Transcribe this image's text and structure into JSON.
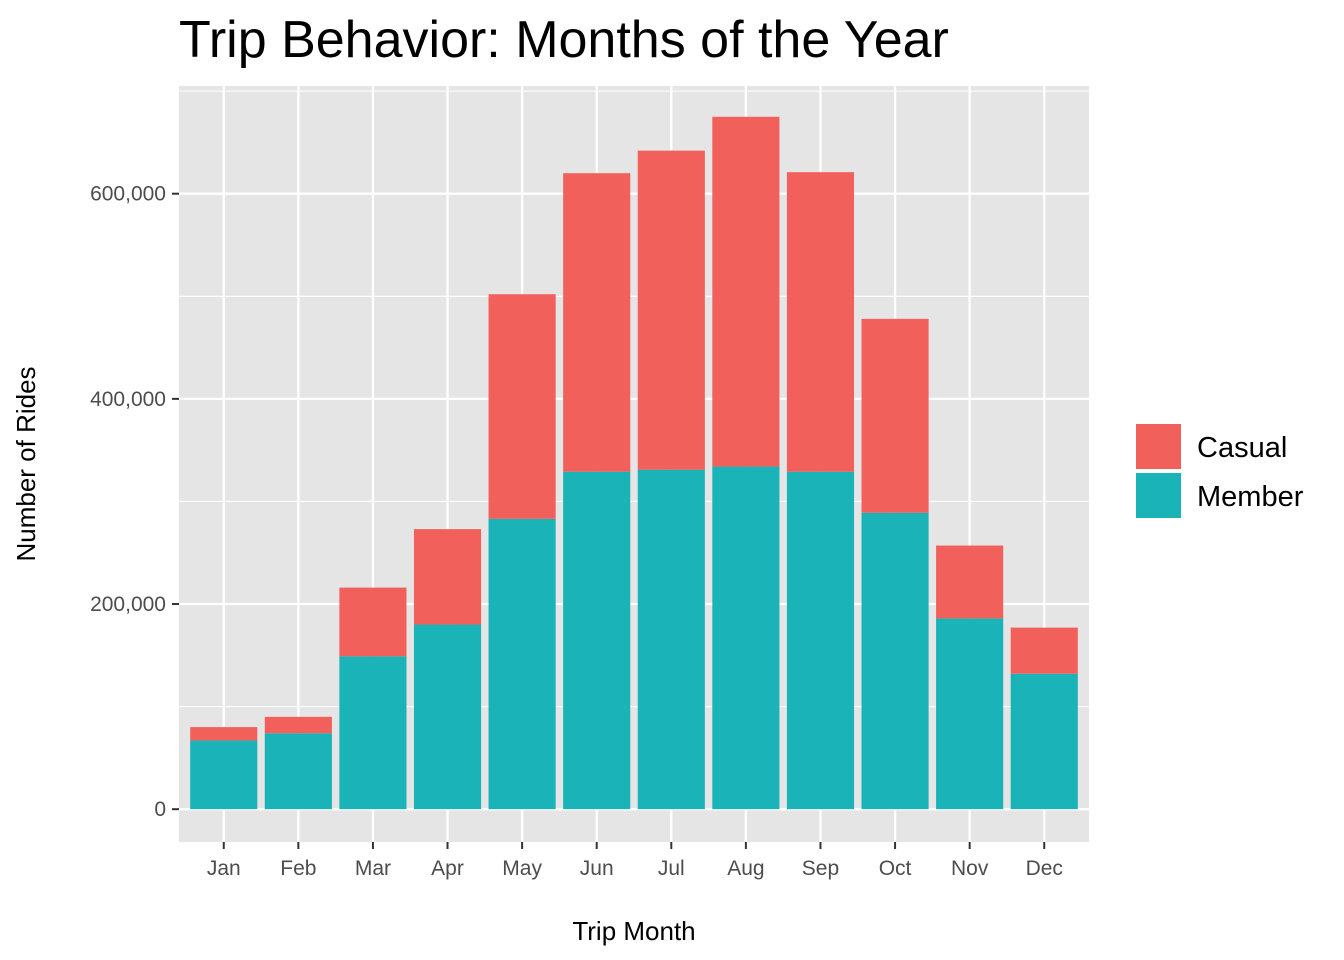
{
  "chart_data": {
    "type": "bar",
    "stacked": true,
    "title": "Trip Behavior: Months of the Year",
    "xlabel": "Trip Month",
    "ylabel": "Number of Rides",
    "categories": [
      "Jan",
      "Feb",
      "Mar",
      "Apr",
      "May",
      "Jun",
      "Jul",
      "Aug",
      "Sep",
      "Oct",
      "Nov",
      "Dec"
    ],
    "series": [
      {
        "name": "Member",
        "color": "#19B3B8",
        "values": [
          67000,
          74000,
          149000,
          180000,
          283000,
          329000,
          331000,
          334000,
          329000,
          289000,
          186000,
          132000
        ]
      },
      {
        "name": "Casual",
        "color": "#F2605B",
        "values": [
          13000,
          16000,
          67000,
          93000,
          219000,
          291000,
          311000,
          341000,
          292000,
          189000,
          71000,
          45000
        ]
      }
    ],
    "legend_order": [
      "Casual",
      "Member"
    ],
    "ylim": [
      -32000,
      705000
    ],
    "yticks": [
      0,
      200000,
      400000,
      600000
    ],
    "ytick_labels": [
      "0",
      "200,000",
      "400,000",
      "600,000"
    ],
    "grid": true,
    "legend_position": "right"
  }
}
